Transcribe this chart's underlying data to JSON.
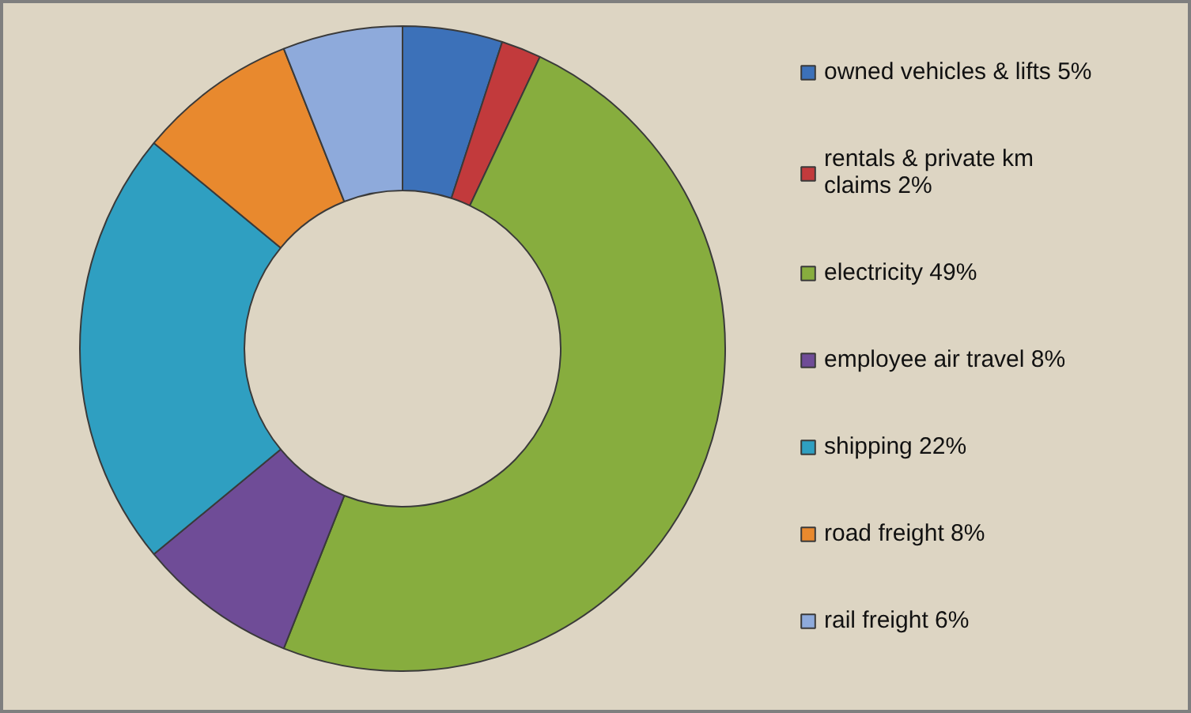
{
  "chart_data": {
    "type": "donut",
    "categories": [
      "owned vehicles & lifts 5%",
      "rentals & private km claims 2%",
      "electricity 49%",
      "employee air travel 8%",
      "shipping 22%",
      "road freight 8%",
      "rail freight 6%"
    ],
    "values": [
      5,
      2,
      49,
      8,
      22,
      8,
      6
    ],
    "colors": [
      "#3c71b9",
      "#c23a3c",
      "#87ad3e",
      "#6f4c97",
      "#2f9fc1",
      "#e8892e",
      "#8eaadb"
    ],
    "legend": "right"
  }
}
